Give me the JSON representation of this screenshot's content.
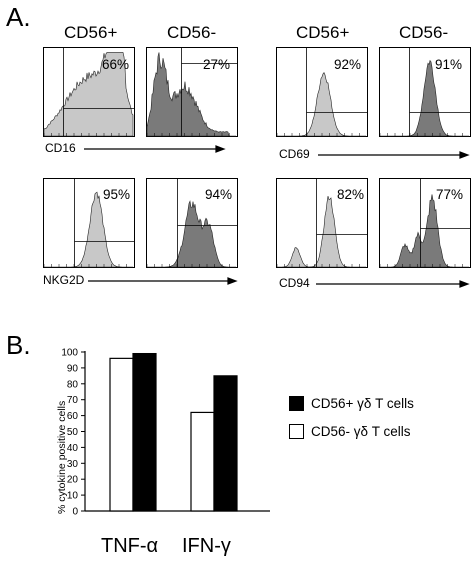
{
  "panel_a": {
    "letter": "A.",
    "col_heads": [
      "CD56+",
      "CD56-",
      "CD56+",
      "CD56-"
    ],
    "histograms": [
      {
        "pct": "66%",
        "fill": "#c8c8c8"
      },
      {
        "pct": "27%",
        "fill": "#7a7a7a"
      },
      {
        "pct": "92%",
        "fill": "#c8c8c8"
      },
      {
        "pct": "91%",
        "fill": "#7a7a7a"
      },
      {
        "pct": "95%",
        "fill": "#c8c8c8"
      },
      {
        "pct": "94%",
        "fill": "#7a7a7a"
      },
      {
        "pct": "82%",
        "fill": "#c8c8c8"
      },
      {
        "pct": "77%",
        "fill": "#7a7a7a"
      }
    ],
    "markers": [
      "CD16",
      "CD69",
      "NKG2D",
      "CD94"
    ]
  },
  "panel_b": {
    "letter": "B."
  },
  "chart_data": {
    "type": "bar",
    "categories": [
      "TNF-α",
      "IFN-γ"
    ],
    "series": [
      {
        "name": "CD56- γδ T cells",
        "values": [
          96,
          62
        ],
        "color": "#ffffff"
      },
      {
        "name": "CD56+ γδ T cells",
        "values": [
          99,
          85
        ],
        "color": "#000000"
      }
    ],
    "legend": [
      "CD56+ γδ T cells",
      "CD56- γδ T cells"
    ],
    "legend_colors": [
      "#000000",
      "#ffffff"
    ],
    "ylabel": "% cytokine positive cells",
    "xlabel": "",
    "ylim": [
      0,
      100
    ],
    "yticks": [
      "0",
      "10",
      "20",
      "30",
      "40",
      "50",
      "60",
      "70",
      "80",
      "90",
      "100"
    ],
    "legend_position": "right"
  }
}
